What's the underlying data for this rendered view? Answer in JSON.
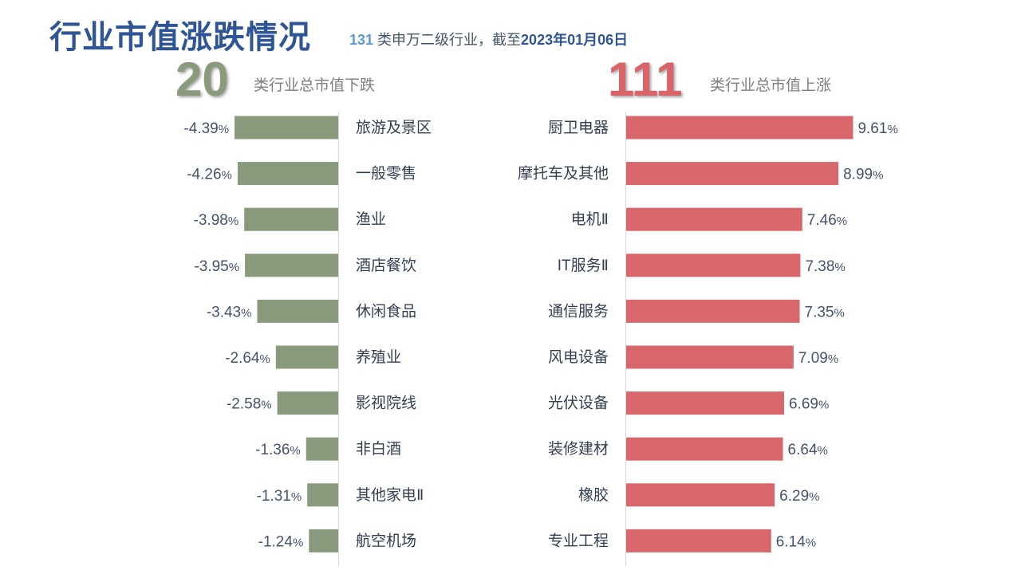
{
  "header": {
    "title": "行业市值涨跌情况",
    "subtitle_count": "131",
    "subtitle_text": " 类申万二级行业，截至",
    "subtitle_date": "2023年01月06日"
  },
  "down_summary": {
    "count": "20",
    "label": "类行业总市值下跌"
  },
  "up_summary": {
    "count": "111",
    "label": "类行业总市值上涨"
  },
  "colors": {
    "down": "#889a7b",
    "up": "#d9666a",
    "title": "#2f5597"
  },
  "chart_data": [
    {
      "type": "bar",
      "orientation": "horizontal",
      "title": "",
      "categories": [
        "旅游及景区",
        "一般零售",
        "渔业",
        "酒店餐饮",
        "休闲食品",
        "养殖业",
        "影视院线",
        "非白酒",
        "其他家电Ⅱ",
        "航空机场"
      ],
      "values": [
        -4.39,
        -4.26,
        -3.98,
        -3.95,
        -3.43,
        -2.64,
        -2.58,
        -1.36,
        -1.31,
        -1.24
      ],
      "value_labels": [
        "-4.39%",
        "-4.26%",
        "-3.98%",
        "-3.95%",
        "-3.43%",
        "-2.64%",
        "-2.58%",
        "-1.36%",
        "-1.31%",
        "-1.24%"
      ],
      "unit": "%",
      "grid": false
    },
    {
      "type": "bar",
      "orientation": "horizontal",
      "title": "",
      "categories": [
        "厨卫电器",
        "摩托车及其他",
        "电机Ⅱ",
        "IT服务Ⅱ",
        "通信服务",
        "风电设备",
        "光伏设备",
        "装修建材",
        "橡胶",
        "专业工程"
      ],
      "values": [
        9.61,
        8.99,
        7.46,
        7.38,
        7.35,
        7.09,
        6.69,
        6.64,
        6.29,
        6.14
      ],
      "value_labels": [
        "9.61%",
        "8.99%",
        "7.46%",
        "7.38%",
        "7.35%",
        "7.09%",
        "6.69%",
        "6.64%",
        "6.29%",
        "6.14%"
      ],
      "unit": "%",
      "grid": false
    }
  ]
}
